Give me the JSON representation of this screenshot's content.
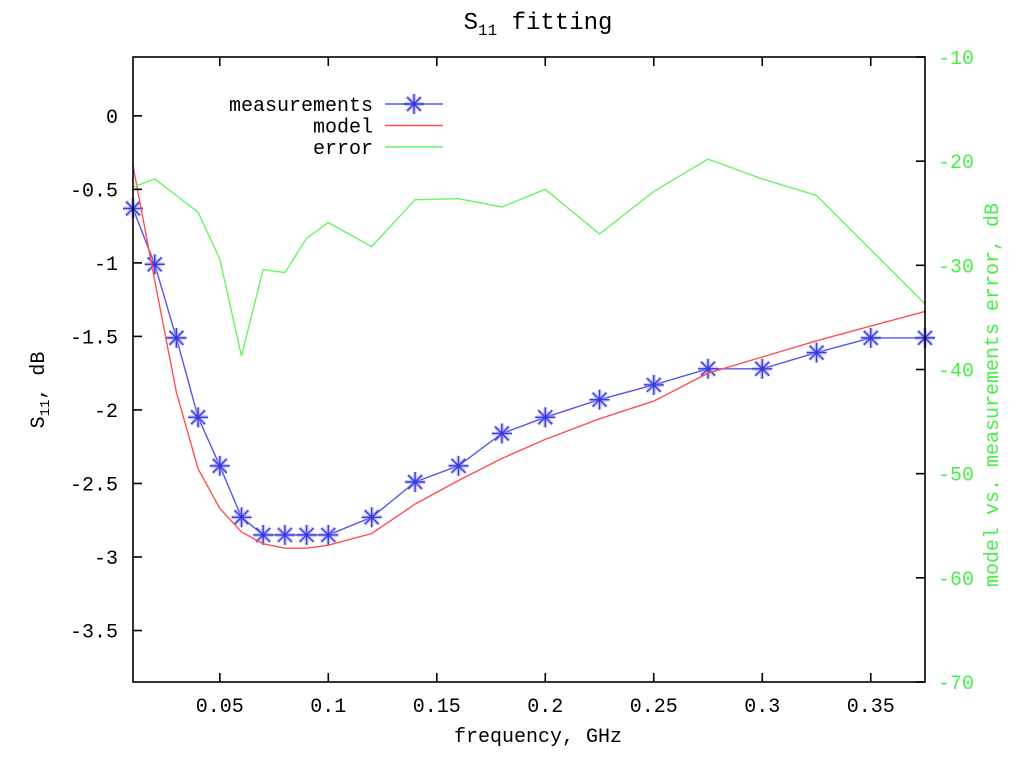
{
  "chart_data": {
    "type": "line",
    "title": {
      "main": "S",
      "sub": "11",
      "rest": " fitting"
    },
    "xlabel": "frequency, GHz",
    "ylabel_left": {
      "main": "S",
      "sub": "11",
      "rest": ", dB"
    },
    "ylabel_right": "model vs. measurements error, dB",
    "xlim": [
      0.01,
      0.375
    ],
    "ylim_left": [
      -3.85,
      0.4
    ],
    "ylim_right": [
      -70,
      -10
    ],
    "grid": false,
    "legend_position": "top-left-inside",
    "x": [
      0.01,
      0.02,
      0.03,
      0.04,
      0.05,
      0.06,
      0.07,
      0.08,
      0.09,
      0.1,
      0.12,
      0.14,
      0.16,
      0.18,
      0.2,
      0.225,
      0.25,
      0.275,
      0.3,
      0.325,
      0.35,
      0.375
    ],
    "series": [
      {
        "name": "measurements",
        "axis": "left",
        "style": "linespoints",
        "marker": "star",
        "values": [
          -0.63,
          -1.01,
          -1.51,
          -2.05,
          -2.38,
          -2.73,
          -2.85,
          -2.85,
          -2.85,
          -2.85,
          -2.73,
          -2.49,
          -2.38,
          -2.16,
          -2.05,
          -1.93,
          -1.83,
          -1.72,
          -1.72,
          -1.61,
          -1.51,
          -1.51
        ]
      },
      {
        "name": "model",
        "axis": "left",
        "style": "line",
        "values": [
          -0.34,
          -1.12,
          -1.88,
          -2.4,
          -2.67,
          -2.83,
          -2.91,
          -2.94,
          -2.94,
          -2.92,
          -2.84,
          -2.64,
          -2.48,
          -2.33,
          -2.2,
          -2.06,
          -1.94,
          -1.75,
          -1.64,
          -1.53,
          -1.43,
          -1.33
        ]
      },
      {
        "name": "error",
        "axis": "right",
        "style": "line",
        "values": [
          -22.5,
          -21.7,
          -23.3,
          -24.9,
          -29.4,
          -38.7,
          -30.4,
          -30.7,
          -27.4,
          -25.9,
          -28.2,
          -23.7,
          -23.6,
          -24.4,
          -22.7,
          -27.0,
          -22.9,
          -19.8,
          -21.7,
          -23.3,
          -28.5,
          -33.7
        ]
      }
    ],
    "xticks": [
      {
        "v": 0.05,
        "label": "0.05"
      },
      {
        "v": 0.1,
        "label": "0.1"
      },
      {
        "v": 0.15,
        "label": "0.15"
      },
      {
        "v": 0.2,
        "label": "0.2"
      },
      {
        "v": 0.25,
        "label": "0.25"
      },
      {
        "v": 0.3,
        "label": "0.3"
      },
      {
        "v": 0.35,
        "label": "0.35"
      }
    ],
    "yticks_left": [
      {
        "v": 0,
        "label": "0"
      },
      {
        "v": -0.5,
        "label": "-0.5"
      },
      {
        "v": -1,
        "label": "-1"
      },
      {
        "v": -1.5,
        "label": "-1.5"
      },
      {
        "v": -2,
        "label": "-2"
      },
      {
        "v": -2.5,
        "label": "-2.5"
      },
      {
        "v": -3,
        "label": "-3"
      },
      {
        "v": -3.5,
        "label": "-3.5"
      }
    ],
    "yticks_right": [
      {
        "v": -10,
        "label": "-10"
      },
      {
        "v": -20,
        "label": "-20"
      },
      {
        "v": -30,
        "label": "-30"
      },
      {
        "v": -40,
        "label": "-40"
      },
      {
        "v": -50,
        "label": "-50"
      },
      {
        "v": -60,
        "label": "-60"
      },
      {
        "v": -70,
        "label": "-70"
      }
    ]
  },
  "colors": {
    "measurements_line": "#5555f0",
    "measurements_marker": "#3838dd",
    "measurements_halo": "#9090ff",
    "model_line": "#ff5050",
    "error_line": "#66f566",
    "error_text": "#4aee4a",
    "axis": "#000000",
    "text": "#000000",
    "background": "#ffffff"
  }
}
